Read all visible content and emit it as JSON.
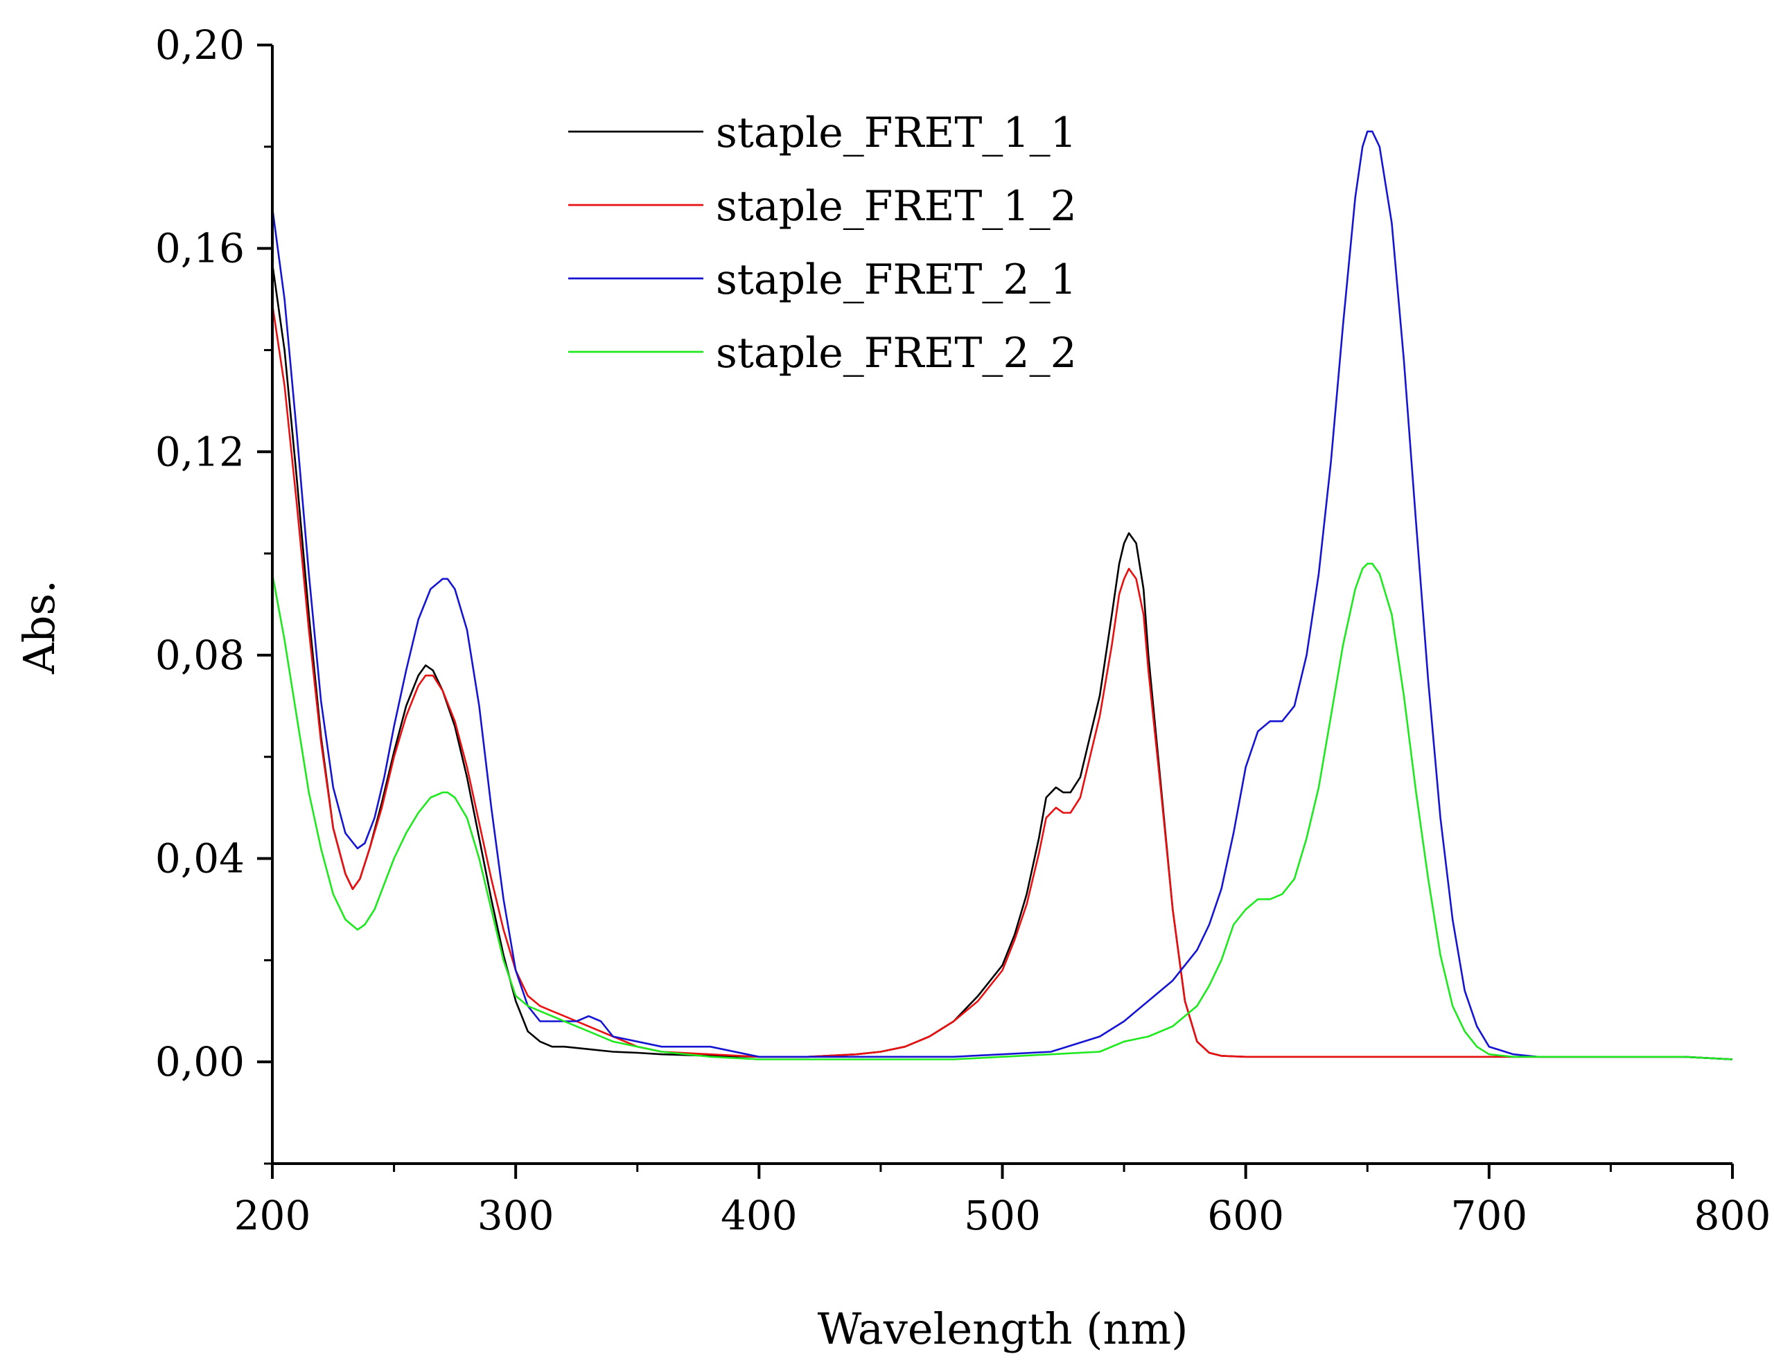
{
  "chart_data": {
    "type": "line",
    "title": "",
    "xlabel": "Wavelength (nm)",
    "ylabel": "Abs.",
    "xlim": [
      200,
      800
    ],
    "ylim": [
      -0.02,
      0.2
    ],
    "grid": false,
    "legend_position": "top-center",
    "x_ticks": [
      {
        "value": 200,
        "label": "200"
      },
      {
        "value": 300,
        "label": "300"
      },
      {
        "value": 400,
        "label": "400"
      },
      {
        "value": 500,
        "label": "500"
      },
      {
        "value": 600,
        "label": "600"
      },
      {
        "value": 700,
        "label": "700"
      },
      {
        "value": 800,
        "label": "800"
      }
    ],
    "y_ticks": [
      {
        "value": 0.0,
        "label": "0,00"
      },
      {
        "value": 0.04,
        "label": "0,04"
      },
      {
        "value": 0.08,
        "label": "0,08"
      },
      {
        "value": 0.12,
        "label": "0,12"
      },
      {
        "value": 0.16,
        "label": "0,16"
      },
      {
        "value": 0.2,
        "label": "0,20"
      }
    ],
    "series": [
      {
        "name": "staple_FRET_1_1",
        "color": "#000000",
        "x": [
          200,
          205,
          210,
          215,
          220,
          225,
          230,
          233,
          236,
          240,
          245,
          250,
          255,
          260,
          263,
          266,
          270,
          275,
          280,
          285,
          290,
          295,
          300,
          305,
          310,
          315,
          320,
          330,
          340,
          350,
          360,
          380,
          400,
          420,
          440,
          450,
          460,
          470,
          480,
          490,
          500,
          505,
          510,
          515,
          518,
          522,
          525,
          528,
          532,
          535,
          540,
          545,
          548,
          550,
          552,
          555,
          558,
          560,
          565,
          570,
          575,
          580,
          585,
          590,
          600,
          620,
          640,
          660,
          680,
          700,
          720,
          740,
          760,
          780,
          800
        ],
        "y": [
          0.157,
          0.14,
          0.115,
          0.088,
          0.064,
          0.046,
          0.037,
          0.034,
          0.036,
          0.042,
          0.051,
          0.061,
          0.07,
          0.076,
          0.078,
          0.077,
          0.073,
          0.066,
          0.056,
          0.044,
          0.032,
          0.021,
          0.012,
          0.006,
          0.004,
          0.003,
          0.003,
          0.0025,
          0.002,
          0.0018,
          0.0015,
          0.0012,
          0.001,
          0.001,
          0.0015,
          0.002,
          0.003,
          0.005,
          0.008,
          0.013,
          0.019,
          0.025,
          0.033,
          0.044,
          0.052,
          0.054,
          0.053,
          0.053,
          0.056,
          0.062,
          0.072,
          0.088,
          0.098,
          0.102,
          0.104,
          0.102,
          0.093,
          0.08,
          0.055,
          0.03,
          0.012,
          0.004,
          0.0018,
          0.0012,
          0.001,
          0.001,
          0.001,
          0.001,
          0.001,
          0.001,
          0.001,
          0.001,
          0.001,
          0.001,
          0.0005
        ]
      },
      {
        "name": "staple_FRET_1_2",
        "color": "#e81010",
        "x": [
          200,
          205,
          210,
          215,
          220,
          225,
          230,
          233,
          236,
          240,
          245,
          250,
          255,
          260,
          263,
          266,
          270,
          275,
          280,
          285,
          290,
          295,
          300,
          305,
          310,
          315,
          320,
          330,
          340,
          350,
          360,
          380,
          400,
          420,
          440,
          450,
          460,
          470,
          480,
          490,
          500,
          505,
          510,
          515,
          518,
          522,
          525,
          528,
          532,
          535,
          540,
          545,
          548,
          550,
          552,
          555,
          558,
          560,
          565,
          570,
          575,
          580,
          585,
          590,
          600,
          620,
          640,
          660,
          680,
          700,
          720,
          740,
          760,
          780,
          800
        ],
        "y": [
          0.149,
          0.133,
          0.11,
          0.085,
          0.063,
          0.046,
          0.037,
          0.034,
          0.036,
          0.042,
          0.05,
          0.06,
          0.068,
          0.074,
          0.076,
          0.076,
          0.073,
          0.067,
          0.058,
          0.047,
          0.036,
          0.026,
          0.018,
          0.013,
          0.011,
          0.01,
          0.009,
          0.007,
          0.005,
          0.003,
          0.002,
          0.0015,
          0.001,
          0.001,
          0.0015,
          0.002,
          0.003,
          0.005,
          0.008,
          0.012,
          0.018,
          0.024,
          0.031,
          0.041,
          0.048,
          0.05,
          0.049,
          0.049,
          0.052,
          0.058,
          0.068,
          0.082,
          0.092,
          0.095,
          0.097,
          0.095,
          0.088,
          0.077,
          0.054,
          0.03,
          0.012,
          0.004,
          0.0018,
          0.0012,
          0.001,
          0.001,
          0.001,
          0.001,
          0.001,
          0.001,
          0.001,
          0.001,
          0.001,
          0.001,
          0.0005
        ]
      },
      {
        "name": "staple_FRET_2_1",
        "color": "#1414d2",
        "x": [
          200,
          205,
          210,
          215,
          220,
          225,
          230,
          235,
          238,
          242,
          246,
          250,
          255,
          260,
          265,
          270,
          272,
          275,
          280,
          285,
          290,
          295,
          300,
          305,
          310,
          315,
          320,
          325,
          330,
          335,
          340,
          350,
          360,
          380,
          400,
          420,
          440,
          460,
          480,
          500,
          520,
          540,
          550,
          560,
          570,
          580,
          585,
          590,
          595,
          600,
          605,
          610,
          615,
          620,
          625,
          630,
          635,
          640,
          645,
          648,
          650,
          652,
          655,
          660,
          665,
          670,
          675,
          680,
          685,
          690,
          695,
          700,
          710,
          720,
          740,
          760,
          780,
          800
        ],
        "y": [
          0.168,
          0.15,
          0.124,
          0.096,
          0.071,
          0.054,
          0.045,
          0.042,
          0.043,
          0.048,
          0.056,
          0.066,
          0.077,
          0.087,
          0.093,
          0.095,
          0.095,
          0.093,
          0.085,
          0.07,
          0.05,
          0.032,
          0.018,
          0.011,
          0.008,
          0.008,
          0.008,
          0.008,
          0.009,
          0.008,
          0.005,
          0.004,
          0.003,
          0.003,
          0.001,
          0.001,
          0.001,
          0.001,
          0.001,
          0.0015,
          0.002,
          0.005,
          0.008,
          0.012,
          0.016,
          0.022,
          0.027,
          0.034,
          0.045,
          0.058,
          0.065,
          0.067,
          0.067,
          0.07,
          0.08,
          0.096,
          0.118,
          0.145,
          0.17,
          0.18,
          0.183,
          0.183,
          0.18,
          0.165,
          0.138,
          0.106,
          0.075,
          0.048,
          0.028,
          0.014,
          0.007,
          0.003,
          0.0015,
          0.001,
          0.001,
          0.001,
          0.001,
          0.0005
        ]
      },
      {
        "name": "staple_FRET_2_2",
        "color": "#1ee81e",
        "x": [
          200,
          205,
          210,
          215,
          220,
          225,
          230,
          235,
          238,
          242,
          246,
          250,
          255,
          260,
          265,
          270,
          272,
          275,
          280,
          285,
          290,
          295,
          300,
          305,
          310,
          320,
          330,
          340,
          350,
          360,
          380,
          400,
          420,
          440,
          460,
          480,
          500,
          520,
          540,
          550,
          560,
          570,
          580,
          585,
          590,
          595,
          600,
          605,
          610,
          615,
          620,
          625,
          630,
          635,
          640,
          645,
          648,
          650,
          652,
          655,
          660,
          665,
          670,
          675,
          680,
          685,
          690,
          695,
          700,
          710,
          720,
          740,
          760,
          780,
          800
        ],
        "y": [
          0.096,
          0.083,
          0.068,
          0.053,
          0.042,
          0.033,
          0.028,
          0.026,
          0.027,
          0.03,
          0.035,
          0.04,
          0.045,
          0.049,
          0.052,
          0.053,
          0.053,
          0.052,
          0.048,
          0.04,
          0.03,
          0.02,
          0.013,
          0.011,
          0.01,
          0.008,
          0.006,
          0.004,
          0.003,
          0.002,
          0.001,
          0.0005,
          0.0005,
          0.0005,
          0.0005,
          0.0005,
          0.001,
          0.0015,
          0.002,
          0.004,
          0.005,
          0.007,
          0.011,
          0.015,
          0.02,
          0.027,
          0.03,
          0.032,
          0.032,
          0.033,
          0.036,
          0.044,
          0.054,
          0.068,
          0.082,
          0.093,
          0.097,
          0.098,
          0.098,
          0.096,
          0.088,
          0.072,
          0.053,
          0.036,
          0.021,
          0.011,
          0.006,
          0.003,
          0.0015,
          0.001,
          0.001,
          0.001,
          0.001,
          0.001,
          0.0005
        ]
      }
    ]
  }
}
